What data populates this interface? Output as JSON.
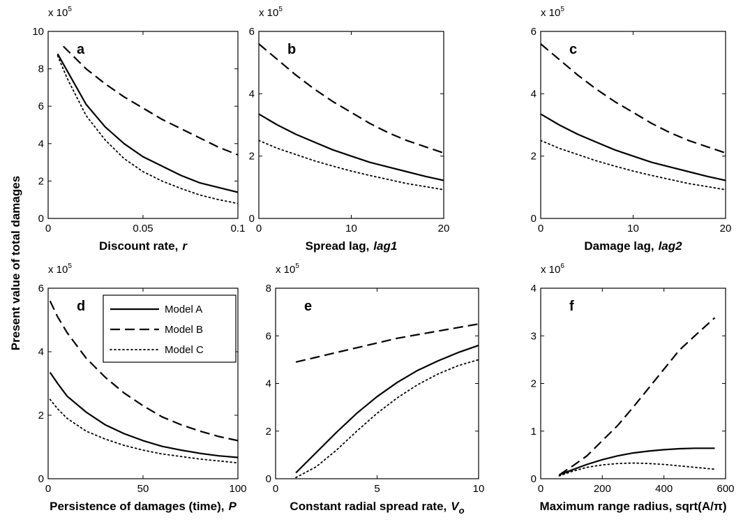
{
  "figure": {
    "ylabel": "Present value of total damages"
  },
  "legend": {
    "entries": [
      {
        "label": "Model A",
        "style": "solid"
      },
      {
        "label": "Model B",
        "style": "dashed"
      },
      {
        "label": "Model C",
        "style": "dotted"
      }
    ]
  },
  "chart_data": [
    {
      "panel": "a",
      "type": "line",
      "xlabel": "Discount rate,",
      "xlabel_var": "r",
      "xlim": [
        0,
        0.1
      ],
      "ylim": [
        0,
        10
      ],
      "xticks": [
        0,
        0.05,
        0.1
      ],
      "xticklabels": [
        "0",
        "0.05",
        "0.1"
      ],
      "yticks": [
        0,
        2,
        4,
        6,
        8,
        10
      ],
      "yticklabels": [
        "0",
        "2",
        "4",
        "6",
        "8",
        "10"
      ],
      "multiplier_base": "x 10",
      "multiplier_exp": "5",
      "series": [
        {
          "name": "Model A",
          "style": "solid",
          "x": [
            0.005,
            0.01,
            0.02,
            0.03,
            0.04,
            0.05,
            0.06,
            0.07,
            0.08,
            0.09,
            0.1
          ],
          "y": [
            8.8,
            7.9,
            6.1,
            4.9,
            4.0,
            3.3,
            2.8,
            2.3,
            1.9,
            1.65,
            1.4
          ]
        },
        {
          "name": "Model B",
          "style": "dashed",
          "x": [
            0.008,
            0.02,
            0.03,
            0.04,
            0.05,
            0.06,
            0.07,
            0.08,
            0.09,
            0.1
          ],
          "y": [
            9.2,
            8.0,
            7.2,
            6.5,
            5.9,
            5.3,
            4.8,
            4.3,
            3.8,
            3.4
          ]
        },
        {
          "name": "Model C",
          "style": "dotted",
          "x": [
            0.005,
            0.01,
            0.02,
            0.03,
            0.04,
            0.05,
            0.06,
            0.07,
            0.08,
            0.09,
            0.1
          ],
          "y": [
            8.7,
            7.5,
            5.5,
            4.2,
            3.2,
            2.5,
            2.0,
            1.6,
            1.25,
            1.0,
            0.8
          ]
        }
      ]
    },
    {
      "panel": "b",
      "type": "line",
      "xlabel": "Spread lag,",
      "xlabel_var": "lag1",
      "xlim": [
        0,
        20
      ],
      "ylim": [
        0,
        6
      ],
      "xticks": [
        0,
        10,
        20
      ],
      "xticklabels": [
        "0",
        "10",
        "20"
      ],
      "yticks": [
        0,
        2,
        4,
        6
      ],
      "yticklabels": [
        "0",
        "2",
        "4",
        "6"
      ],
      "multiplier_base": "x 10",
      "multiplier_exp": "5",
      "series": [
        {
          "name": "Model A",
          "style": "solid",
          "x": [
            0,
            2,
            4,
            6,
            8,
            10,
            12,
            14,
            16,
            18,
            20
          ],
          "y": [
            3.35,
            3.0,
            2.7,
            2.45,
            2.2,
            2.0,
            1.8,
            1.65,
            1.5,
            1.35,
            1.22
          ]
        },
        {
          "name": "Model B",
          "style": "dashed",
          "x": [
            0,
            2,
            4,
            6,
            8,
            10,
            12,
            14,
            16,
            18,
            20
          ],
          "y": [
            5.6,
            5.1,
            4.6,
            4.15,
            3.75,
            3.4,
            3.05,
            2.75,
            2.5,
            2.3,
            2.1
          ]
        },
        {
          "name": "Model C",
          "style": "dotted",
          "x": [
            0,
            2,
            4,
            6,
            8,
            10,
            12,
            14,
            16,
            18,
            20
          ],
          "y": [
            2.5,
            2.25,
            2.05,
            1.85,
            1.68,
            1.52,
            1.38,
            1.25,
            1.12,
            1.02,
            0.92
          ]
        }
      ]
    },
    {
      "panel": "c",
      "type": "line",
      "xlabel": "Damage lag,",
      "xlabel_var": "lag2",
      "xlim": [
        0,
        20
      ],
      "ylim": [
        0,
        6
      ],
      "xticks": [
        0,
        10,
        20
      ],
      "xticklabels": [
        "0",
        "10",
        "20"
      ],
      "yticks": [
        0,
        2,
        4,
        6
      ],
      "yticklabels": [
        "0",
        "2",
        "4",
        "6"
      ],
      "multiplier_base": "x 10",
      "multiplier_exp": "5",
      "series": [
        {
          "name": "Model A",
          "style": "solid",
          "x": [
            0,
            2,
            4,
            6,
            8,
            10,
            12,
            14,
            16,
            18,
            20
          ],
          "y": [
            3.35,
            3.0,
            2.7,
            2.45,
            2.2,
            2.0,
            1.8,
            1.65,
            1.5,
            1.35,
            1.22
          ]
        },
        {
          "name": "Model B",
          "style": "dashed",
          "x": [
            0,
            2,
            4,
            6,
            8,
            10,
            12,
            14,
            16,
            18,
            20
          ],
          "y": [
            5.6,
            5.1,
            4.6,
            4.15,
            3.75,
            3.4,
            3.05,
            2.75,
            2.5,
            2.3,
            2.1
          ]
        },
        {
          "name": "Model C",
          "style": "dotted",
          "x": [
            0,
            2,
            4,
            6,
            8,
            10,
            12,
            14,
            16,
            18,
            20
          ],
          "y": [
            2.5,
            2.25,
            2.05,
            1.85,
            1.68,
            1.52,
            1.38,
            1.25,
            1.12,
            1.02,
            0.92
          ]
        }
      ]
    },
    {
      "panel": "d",
      "type": "line",
      "xlabel": "Persistence of damages (time),",
      "xlabel_var": "P",
      "xlim": [
        0,
        100
      ],
      "ylim": [
        0,
        6
      ],
      "xticks": [
        0,
        50,
        100
      ],
      "xticklabels": [
        "0",
        "50",
        "100"
      ],
      "yticks": [
        0,
        2,
        4,
        6
      ],
      "yticklabels": [
        "0",
        "2",
        "4",
        "6"
      ],
      "multiplier_base": "x 10",
      "multiplier_exp": "5",
      "series": [
        {
          "name": "Model A",
          "style": "solid",
          "x": [
            1,
            5,
            10,
            20,
            30,
            40,
            50,
            60,
            70,
            80,
            90,
            100
          ],
          "y": [
            3.35,
            3.0,
            2.6,
            2.1,
            1.7,
            1.42,
            1.2,
            1.02,
            0.9,
            0.8,
            0.72,
            0.67
          ]
        },
        {
          "name": "Model B",
          "style": "dashed",
          "x": [
            1,
            5,
            10,
            20,
            30,
            40,
            50,
            60,
            70,
            80,
            90,
            100
          ],
          "y": [
            5.6,
            5.1,
            4.6,
            3.8,
            3.2,
            2.7,
            2.3,
            1.95,
            1.7,
            1.5,
            1.33,
            1.2
          ]
        },
        {
          "name": "Model C",
          "style": "dotted",
          "x": [
            1,
            5,
            10,
            20,
            30,
            40,
            50,
            60,
            70,
            80,
            90,
            100
          ],
          "y": [
            2.5,
            2.2,
            1.9,
            1.5,
            1.25,
            1.05,
            0.9,
            0.78,
            0.7,
            0.62,
            0.56,
            0.5
          ]
        }
      ]
    },
    {
      "panel": "e",
      "type": "line",
      "xlabel": "Constant radial spread rate,",
      "xlabel_var": "V",
      "xlabel_sub": "o",
      "xlim": [
        0,
        10
      ],
      "ylim": [
        0,
        8
      ],
      "xticks": [
        0,
        5,
        10
      ],
      "xticklabels": [
        "0",
        "5",
        "10"
      ],
      "yticks": [
        0,
        2,
        4,
        6,
        8
      ],
      "yticklabels": [
        "0",
        "2",
        "4",
        "6",
        "8"
      ],
      "multiplier_base": "x 10",
      "multiplier_exp": "5",
      "series": [
        {
          "name": "Model A",
          "style": "solid",
          "x": [
            1,
            2,
            3,
            4,
            5,
            6,
            7,
            8,
            9,
            10
          ],
          "y": [
            0.25,
            1.1,
            1.95,
            2.75,
            3.45,
            4.05,
            4.55,
            4.95,
            5.3,
            5.6
          ]
        },
        {
          "name": "Model B",
          "style": "dashed",
          "x": [
            1,
            2,
            3,
            4,
            5,
            6,
            7,
            8,
            9,
            10
          ],
          "y": [
            4.9,
            5.1,
            5.3,
            5.5,
            5.7,
            5.9,
            6.05,
            6.2,
            6.35,
            6.5
          ]
        },
        {
          "name": "Model C",
          "style": "dotted",
          "x": [
            1,
            2,
            3,
            4,
            5,
            6,
            7,
            8,
            9,
            10
          ],
          "y": [
            0.05,
            0.5,
            1.2,
            2.0,
            2.75,
            3.4,
            3.95,
            4.4,
            4.75,
            5.0
          ]
        }
      ]
    },
    {
      "panel": "f",
      "type": "line",
      "xlabel": "Maximum range radius, sqrt(A/π)",
      "xlabel_var": "",
      "xlim": [
        0,
        600
      ],
      "ylim": [
        0,
        4
      ],
      "xticks": [
        0,
        200,
        400,
        600
      ],
      "xticklabels": [
        "0",
        "200",
        "400",
        "600"
      ],
      "yticks": [
        0,
        1,
        2,
        3,
        4
      ],
      "yticklabels": [
        "0",
        "1",
        "2",
        "3",
        "4"
      ],
      "multiplier_base": "x 10",
      "multiplier_exp": "6",
      "series": [
        {
          "name": "Model A",
          "style": "solid",
          "x": [
            60,
            100,
            150,
            200,
            250,
            300,
            350,
            400,
            450,
            500,
            565
          ],
          "y": [
            0.08,
            0.18,
            0.3,
            0.4,
            0.48,
            0.54,
            0.58,
            0.61,
            0.63,
            0.64,
            0.64
          ]
        },
        {
          "name": "Model B",
          "style": "dashed",
          "x": [
            60,
            100,
            150,
            200,
            250,
            300,
            350,
            400,
            450,
            500,
            565
          ],
          "y": [
            0.08,
            0.25,
            0.48,
            0.8,
            1.12,
            1.5,
            1.9,
            2.3,
            2.7,
            3.0,
            3.38
          ]
        },
        {
          "name": "Model C",
          "style": "dotted",
          "x": [
            60,
            100,
            150,
            200,
            250,
            300,
            350,
            400,
            450,
            500,
            565
          ],
          "y": [
            0.06,
            0.15,
            0.24,
            0.29,
            0.32,
            0.33,
            0.32,
            0.3,
            0.27,
            0.24,
            0.2
          ]
        }
      ]
    }
  ]
}
